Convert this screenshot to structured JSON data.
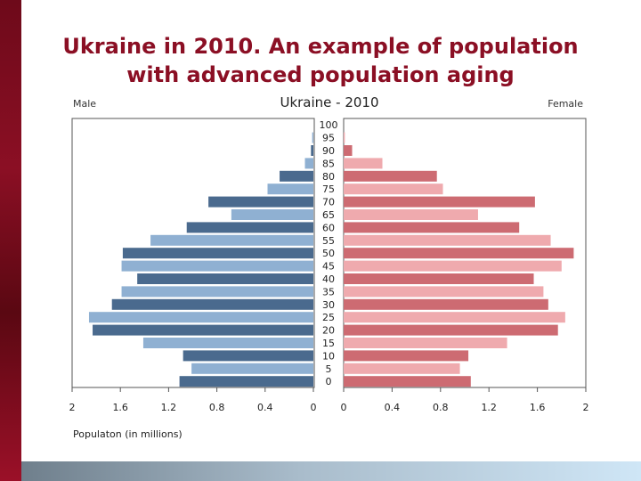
{
  "slide": {
    "title_line1": "Ukraine in 2010. An example of population",
    "title_line2": "with advanced population aging"
  },
  "colors": {
    "title": "#8b0f24",
    "male_dark": "#4a6a8e",
    "male_light": "#8fb0d2",
    "female_dark": "#cd6b72",
    "female_light": "#efaaae"
  },
  "chart_data": {
    "type": "bar",
    "title": "Ukraine - 2010",
    "left_label": "Male",
    "right_label": "Female",
    "xlabel": "Populaton (in millions)",
    "xlim": [
      0,
      2
    ],
    "x_ticks_left": [
      "2",
      "1.6",
      "1.2",
      "0.8",
      "0.4",
      "0"
    ],
    "x_ticks_right": [
      "0",
      "0.4",
      "0.8",
      "1.2",
      "1.6",
      "2"
    ],
    "categories": [
      "100",
      "95",
      "90",
      "85",
      "80",
      "75",
      "70",
      "65",
      "60",
      "55",
      "50",
      "45",
      "40",
      "35",
      "30",
      "25",
      "20",
      "15",
      "10",
      "5",
      "0"
    ],
    "series": [
      {
        "name": "Male",
        "values": [
          0.0,
          0.01,
          0.02,
          0.07,
          0.28,
          0.38,
          0.87,
          0.68,
          1.05,
          1.35,
          1.58,
          1.59,
          1.46,
          1.59,
          1.67,
          1.86,
          1.83,
          1.41,
          1.08,
          1.01,
          1.11
        ]
      },
      {
        "name": "Female",
        "values": [
          0.0,
          0.01,
          0.07,
          0.32,
          0.77,
          0.82,
          1.58,
          1.11,
          1.45,
          1.71,
          1.9,
          1.8,
          1.57,
          1.65,
          1.69,
          1.83,
          1.77,
          1.35,
          1.03,
          0.96,
          1.05
        ]
      }
    ],
    "grid": false,
    "legend": "none"
  }
}
